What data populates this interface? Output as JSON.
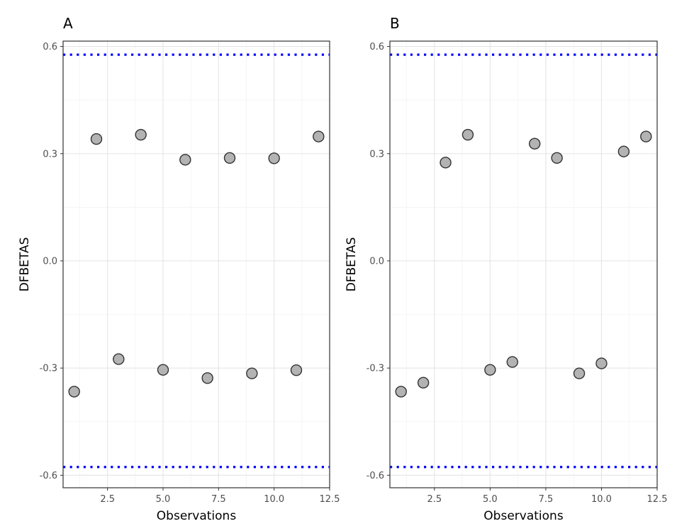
{
  "chart_data": [
    {
      "type": "scatter",
      "panel_label": "A",
      "xlabel": "Observations",
      "ylabel": "DFBETAS",
      "xlim": [
        0.5,
        12.5
      ],
      "ylim": [
        -0.635,
        0.615
      ],
      "x_ticks": [
        2.5,
        5.0,
        7.5,
        10.0,
        12.5
      ],
      "x_tick_labels": [
        "2.5",
        "5.0",
        "7.5",
        "10.0",
        "12.5"
      ],
      "y_ticks": [
        -0.6,
        -0.3,
        0.0,
        0.3,
        0.6
      ],
      "y_tick_labels": [
        "-0.6",
        "-0.3",
        "0.0",
        "0.3",
        "0.6"
      ],
      "grid": true,
      "x": [
        1,
        2,
        3,
        4,
        5,
        6,
        7,
        8,
        9,
        10,
        11,
        12
      ],
      "y": [
        -0.366,
        0.341,
        -0.275,
        0.353,
        -0.305,
        0.283,
        -0.328,
        0.288,
        -0.315,
        0.287,
        -0.306,
        0.348
      ],
      "thresholds": [
        0.577,
        -0.577
      ],
      "colors": {
        "point_fill": "#b3b3b3",
        "point_stroke": "#333333",
        "threshold": "#0000ff"
      }
    },
    {
      "type": "scatter",
      "panel_label": "B",
      "xlabel": "Observations",
      "ylabel": "DFBETAS",
      "xlim": [
        0.5,
        12.5
      ],
      "ylim": [
        -0.635,
        0.615
      ],
      "x_ticks": [
        2.5,
        5.0,
        7.5,
        10.0,
        12.5
      ],
      "x_tick_labels": [
        "2.5",
        "5.0",
        "7.5",
        "10.0",
        "12.5"
      ],
      "y_ticks": [
        -0.6,
        -0.3,
        0.0,
        0.3,
        0.6
      ],
      "y_tick_labels": [
        "-0.6",
        "-0.3",
        "0.0",
        "0.3",
        "0.6"
      ],
      "grid": true,
      "x": [
        1,
        2,
        3,
        4,
        5,
        6,
        7,
        8,
        9,
        10,
        11,
        12
      ],
      "y": [
        -0.366,
        -0.341,
        0.275,
        0.353,
        -0.305,
        -0.283,
        0.328,
        0.288,
        -0.315,
        -0.287,
        0.306,
        0.348
      ],
      "thresholds": [
        0.577,
        -0.577
      ],
      "colors": {
        "point_fill": "#b3b3b3",
        "point_stroke": "#333333",
        "threshold": "#0000ff"
      }
    }
  ]
}
